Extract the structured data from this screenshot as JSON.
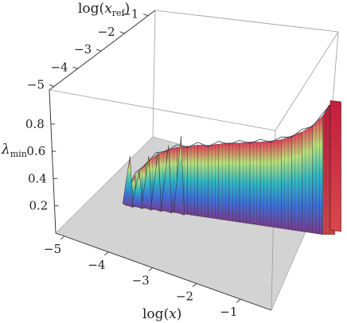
{
  "chart_data": {
    "type": "surface3d",
    "title": "",
    "axes": {
      "x": {
        "label_main": "log(",
        "label_var": "x",
        "label_end": ")",
        "ticks": [
          "−5",
          "−4",
          "−3",
          "−2",
          "−1"
        ],
        "range": [
          -5.2,
          -0.3
        ]
      },
      "xref": {
        "label_main": "log(",
        "label_var": "x",
        "label_sub": "ref",
        "label_end": ")",
        "ticks": [
          "−5",
          "−4",
          "−3",
          "−2",
          "−1"
        ],
        "range": [
          -5.2,
          -0.7
        ]
      },
      "z": {
        "label_var": "λ",
        "label_sub": "min",
        "ticks": [
          "0.2",
          "0.4",
          "0.6",
          "0.8"
        ],
        "range": [
          0.0,
          1.05
        ]
      }
    },
    "profile": {
      "description_free": true,
      "logx": [
        -4.4,
        -4.2,
        -4.0,
        -3.8,
        -3.6,
        -3.4,
        -3.2,
        -3.0,
        -2.8,
        -2.6,
        -2.4,
        -2.2,
        -2.0,
        -1.8,
        -1.6,
        -1.4,
        -1.2,
        -1.0,
        -0.8,
        -0.6,
        -0.5,
        -0.4
      ],
      "lambda_min": [
        0.12,
        0.28,
        0.38,
        0.45,
        0.5,
        0.53,
        0.55,
        0.57,
        0.58,
        0.6,
        0.62,
        0.63,
        0.65,
        0.66,
        0.68,
        0.7,
        0.74,
        0.78,
        0.84,
        0.92,
        1.0,
        1.0
      ]
    },
    "grid": false,
    "floor_color": "#d3d3d3",
    "colors": {
      "low": "#7a3c8c",
      "mid1": "#3d6fd6",
      "mid2": "#2fb7c2",
      "mid3": "#b8e07a",
      "high": "#e43a55"
    }
  }
}
